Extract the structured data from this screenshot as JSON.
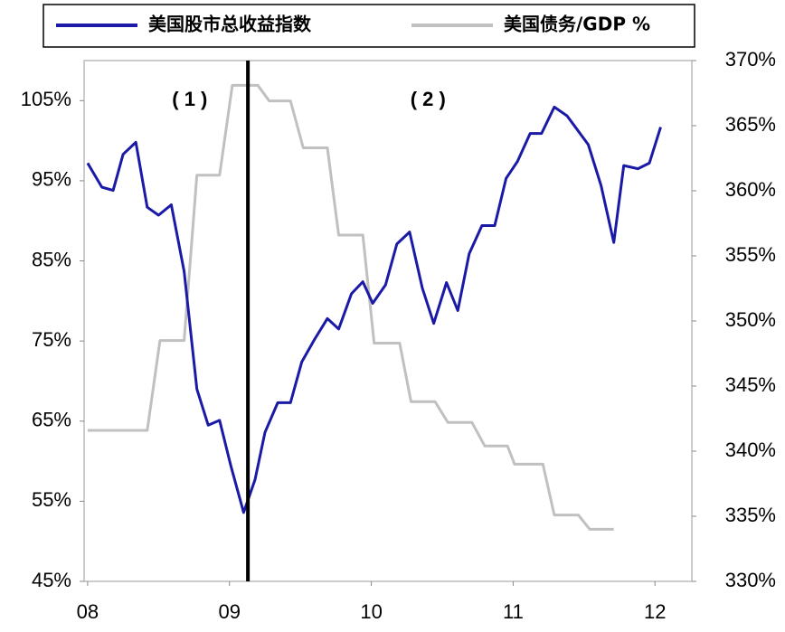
{
  "chart_data": {
    "type": "line",
    "legend": "top",
    "xlim": [
      7.975,
      12.26
    ],
    "xticks": [
      {
        "value": 8,
        "label": "08"
      },
      {
        "value": 9,
        "label": "09"
      },
      {
        "value": 10,
        "label": "10"
      },
      {
        "value": 11,
        "label": "11"
      },
      {
        "value": 12,
        "label": "12"
      }
    ],
    "ylim": [
      45,
      110
    ],
    "yticks": [
      {
        "value": 45,
        "label": "45%"
      },
      {
        "value": 55,
        "label": "55%"
      },
      {
        "value": 65,
        "label": "65%"
      },
      {
        "value": 75,
        "label": "75%"
      },
      {
        "value": 85,
        "label": "85%"
      },
      {
        "value": 95,
        "label": "95%"
      },
      {
        "value": 105,
        "label": "105%"
      }
    ],
    "y2lim": [
      330,
      370
    ],
    "y2ticks": [
      {
        "value": 330,
        "label": "330%"
      },
      {
        "value": 335,
        "label": "335%"
      },
      {
        "value": 340,
        "label": "340%"
      },
      {
        "value": 345,
        "label": "345%"
      },
      {
        "value": 350,
        "label": "350%"
      },
      {
        "value": 355,
        "label": "355%"
      },
      {
        "value": 360,
        "label": "360%"
      },
      {
        "value": 365,
        "label": "365%"
      },
      {
        "value": 370,
        "label": "370%"
      }
    ],
    "vline_x": 9.13,
    "annotations": [
      {
        "text": "( 1 )",
        "x": 8.72,
        "y": 105
      },
      {
        "text": "( 2 )",
        "x": 10.4,
        "y": 105
      }
    ],
    "series": [
      {
        "name": "美国股市总收益指数",
        "color": "#1a1aa6",
        "axis": "y",
        "x": [
          8.0,
          8.1,
          8.18,
          8.25,
          8.34,
          8.42,
          8.5,
          8.59,
          8.68,
          8.77,
          8.85,
          8.93,
          9.01,
          9.1,
          9.18,
          9.25,
          9.34,
          9.43,
          9.51,
          9.6,
          9.69,
          9.77,
          9.86,
          9.94,
          10.01,
          10.1,
          10.18,
          10.27,
          10.36,
          10.44,
          10.53,
          10.61,
          10.69,
          10.78,
          10.87,
          10.95,
          11.03,
          11.12,
          11.2,
          11.29,
          11.38,
          11.53,
          11.62,
          11.71,
          11.78,
          11.88,
          11.96,
          12.04
        ],
        "values": [
          97.2,
          94.2,
          93.8,
          98.3,
          99.8,
          91.7,
          90.7,
          92.0,
          83.7,
          69.0,
          64.5,
          65.1,
          59.4,
          53.6,
          57.7,
          63.6,
          67.3,
          67.3,
          72.4,
          75.2,
          77.8,
          76.5,
          80.9,
          82.4,
          79.7,
          82.0,
          87.1,
          88.6,
          81.6,
          77.2,
          82.3,
          78.8,
          85.9,
          89.4,
          89.4,
          95.3,
          97.4,
          100.9,
          100.9,
          104.2,
          103.1,
          99.5,
          94.4,
          87.3,
          96.9,
          96.5,
          97.2,
          101.7
        ]
      },
      {
        "name": "美国债务/GDP %",
        "color": "#c0c0c0",
        "axis": "y2",
        "x": [
          8.0,
          8.42,
          8.51,
          8.68,
          8.77,
          8.93,
          9.02,
          9.2,
          9.28,
          9.43,
          9.52,
          9.69,
          9.77,
          9.94,
          10.02,
          10.2,
          10.28,
          10.45,
          10.54,
          10.71,
          10.8,
          10.96,
          11.01,
          11.21,
          11.29,
          11.46,
          11.54,
          11.71
        ],
        "values": [
          341.6,
          341.6,
          348.5,
          348.5,
          361.2,
          361.2,
          368.1,
          368.1,
          366.9,
          366.9,
          363.3,
          363.3,
          356.6,
          356.6,
          348.3,
          348.3,
          343.8,
          343.8,
          342.2,
          342.2,
          340.4,
          340.4,
          339.0,
          339.0,
          335.1,
          335.1,
          334.0,
          334.0
        ]
      }
    ]
  }
}
